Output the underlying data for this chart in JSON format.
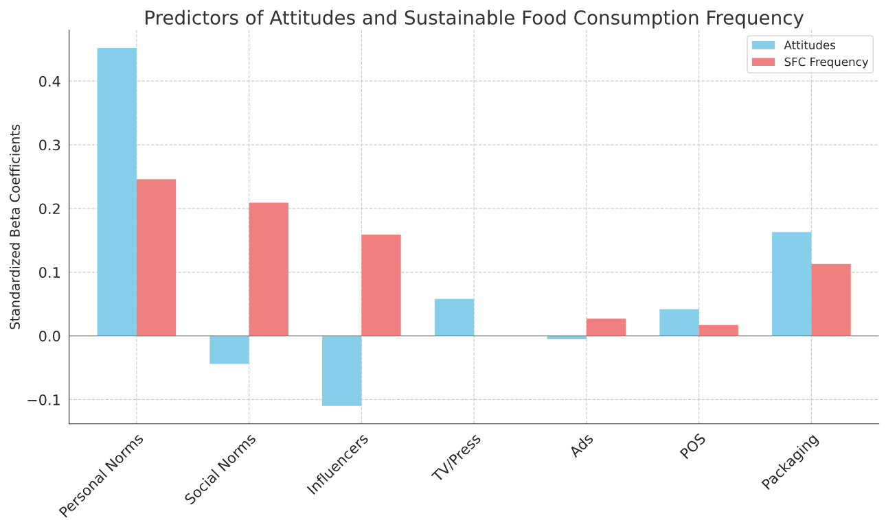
{
  "chart_data": {
    "type": "bar",
    "title": "Predictors of Attitudes and Sustainable Food Consumption Frequency",
    "ylabel": "Standardized Beta Coefficients",
    "categories": [
      "Personal Norms",
      "Social Norms",
      "Influencers",
      "TV/Press",
      "Ads",
      "POS",
      "Packaging"
    ],
    "series": [
      {
        "name": "Attitudes",
        "color": "#87ceeb",
        "values": [
          0.452,
          -0.044,
          -0.11,
          0.058,
          -0.005,
          0.042,
          0.163
        ]
      },
      {
        "name": "SFC Frequency",
        "color": "#f08080",
        "values": [
          0.246,
          0.209,
          0.159,
          null,
          0.027,
          0.017,
          0.113
        ]
      }
    ],
    "ylim": [
      -0.138,
      0.48
    ],
    "yticks": [
      {
        "value": -0.1,
        "label": "−0.1"
      },
      {
        "value": 0.0,
        "label": "0.0"
      },
      {
        "value": 0.1,
        "label": "0.1"
      },
      {
        "value": 0.2,
        "label": "0.2"
      },
      {
        "value": 0.3,
        "label": "0.3"
      },
      {
        "value": 0.4,
        "label": "0.4"
      }
    ],
    "ref_lines": [
      {
        "axis": "y",
        "value": 0,
        "color": "#808080",
        "line_style": "solid"
      }
    ],
    "grid": true,
    "legend": "top right"
  }
}
